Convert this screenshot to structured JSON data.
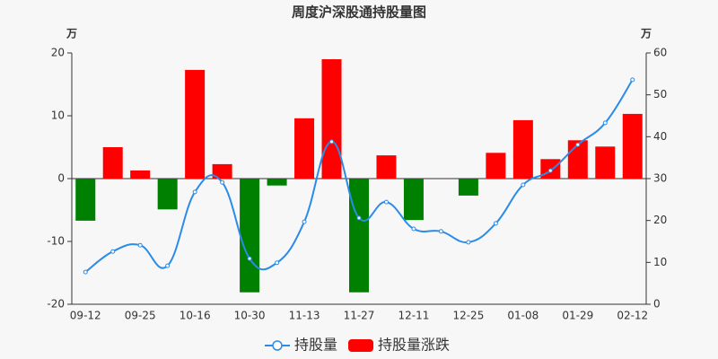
{
  "chart_data": {
    "type": "bar-line",
    "title": "周度沪深股通持股量图",
    "y_unit": "万",
    "y2_unit": "万",
    "categories": [
      "09-12",
      null,
      "09-25",
      null,
      "10-16",
      null,
      "10-30",
      null,
      "11-13",
      null,
      "11-27",
      null,
      "12-11",
      null,
      "12-25",
      null,
      "01-08",
      null,
      "01-29",
      null,
      "02-12"
    ],
    "ylim": [
      -20,
      20
    ],
    "yticks": [
      -20,
      -10,
      0,
      10,
      20
    ],
    "y2lim": [
      0,
      60
    ],
    "y2ticks": [
      0,
      10,
      20,
      30,
      40,
      50,
      60
    ],
    "series": [
      {
        "name": "持股量",
        "type": "line",
        "axis": "y2",
        "color": "#2b8ce8",
        "values": [
          7.7,
          12.6,
          14.1,
          9.2,
          26.8,
          29.1,
          10.9,
          9.9,
          19.7,
          38.8,
          20.6,
          24.4,
          18.0,
          17.4,
          14.8,
          19.3,
          28.5,
          31.9,
          38.1,
          43.3,
          53.6
        ]
      },
      {
        "name": "持股量涨跌",
        "type": "bar",
        "color": "#ff0000",
        "negative_color": "#008000",
        "values": [
          -6.7,
          5.0,
          1.3,
          -4.9,
          17.3,
          2.3,
          -18.1,
          -1.1,
          9.6,
          19.0,
          -18.1,
          3.7,
          -6.6,
          0,
          -2.7,
          4.1,
          9.3,
          3.1,
          6.1,
          5.1,
          10.3
        ]
      }
    ]
  }
}
